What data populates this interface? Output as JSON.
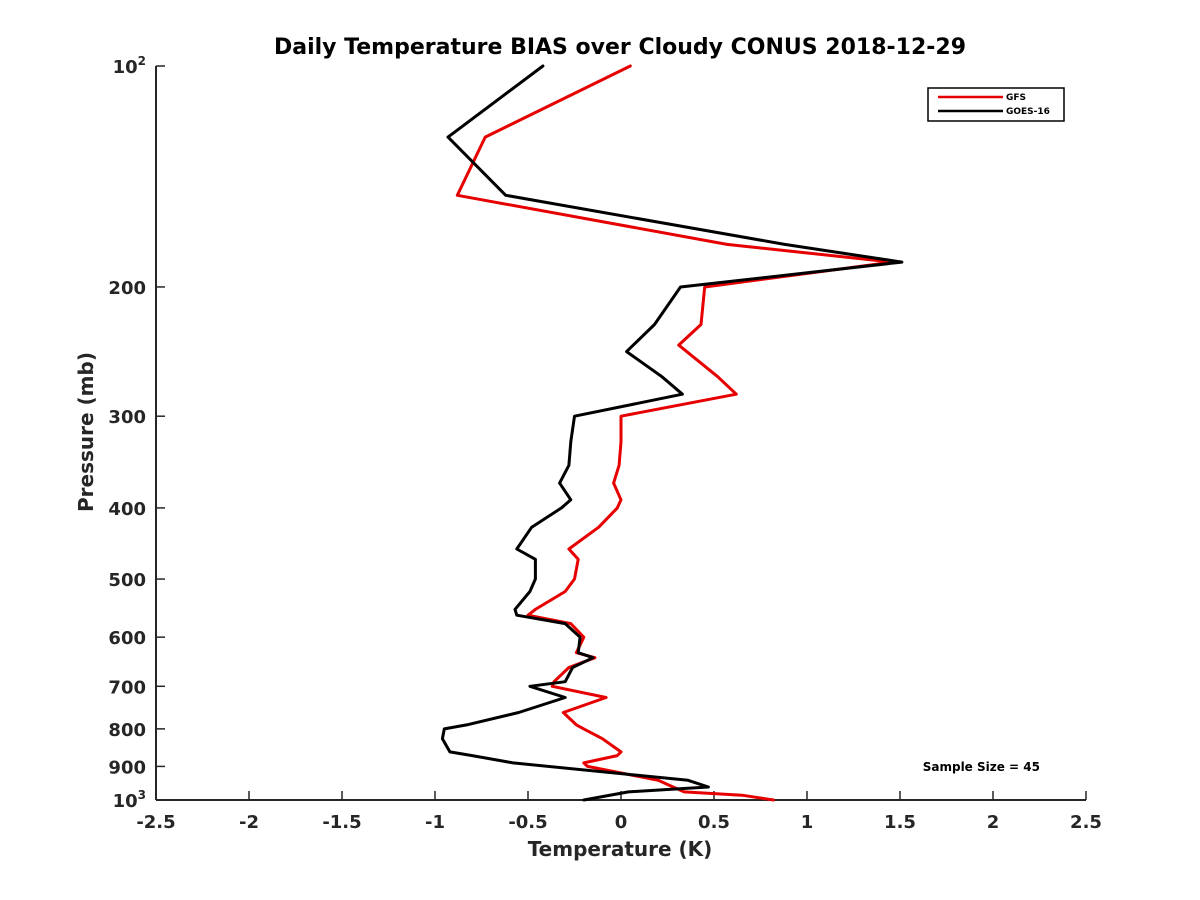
{
  "chart_data": {
    "type": "line",
    "title": "Daily Temperature BIAS over Cloudy CONUS 2018-12-29",
    "xlabel": "Temperature (K)",
    "ylabel": "Pressure (mb)",
    "xlim": [
      -2.5,
      2.5
    ],
    "ylim": [
      100,
      1000
    ],
    "y_scale": "log",
    "y_reversed": true,
    "x_ticks": [
      -2.5,
      -2,
      -1.5,
      -1,
      -0.5,
      0,
      0.5,
      1,
      1.5,
      2,
      2.5
    ],
    "x_tick_labels": [
      "-2.5",
      "-2",
      "-1.5",
      "-1",
      "-0.5",
      "0",
      "0.5",
      "1",
      "1.5",
      "2",
      "2.5"
    ],
    "y_ticks": [
      {
        "value": 100,
        "base": "10",
        "exp": "2"
      },
      {
        "value": 200,
        "label": "200"
      },
      {
        "value": 300,
        "label": "300"
      },
      {
        "value": 400,
        "label": "400"
      },
      {
        "value": 500,
        "label": "500"
      },
      {
        "value": 600,
        "label": "600"
      },
      {
        "value": 700,
        "label": "700"
      },
      {
        "value": 800,
        "label": "800"
      },
      {
        "value": 900,
        "label": "900"
      },
      {
        "value": 1000,
        "base": "10",
        "exp": "3"
      }
    ],
    "grid": false,
    "legend_position": "top-right",
    "annotation": "Sample Size = 45",
    "series": [
      {
        "name": "GFS",
        "color": "#e60000",
        "points": [
          [
            0.05,
            100
          ],
          [
            -0.73,
            125
          ],
          [
            -0.88,
            150
          ],
          [
            0.57,
            175
          ],
          [
            1.46,
            185
          ],
          [
            0.45,
            200
          ],
          [
            0.43,
            225
          ],
          [
            0.31,
            240
          ],
          [
            0.52,
            265
          ],
          [
            0.62,
            280
          ],
          [
            0.0,
            300
          ],
          [
            0.0,
            325
          ],
          [
            -0.01,
            350
          ],
          [
            -0.04,
            370
          ],
          [
            0.0,
            390
          ],
          [
            -0.02,
            400
          ],
          [
            -0.12,
            425
          ],
          [
            -0.28,
            455
          ],
          [
            -0.23,
            470
          ],
          [
            -0.25,
            500
          ],
          [
            -0.3,
            520
          ],
          [
            -0.46,
            550
          ],
          [
            -0.5,
            560
          ],
          [
            -0.27,
            575
          ],
          [
            -0.2,
            600
          ],
          [
            -0.24,
            630
          ],
          [
            -0.14,
            640
          ],
          [
            -0.28,
            660
          ],
          [
            -0.36,
            690
          ],
          [
            -0.37,
            700
          ],
          [
            -0.08,
            725
          ],
          [
            -0.31,
            760
          ],
          [
            -0.24,
            790
          ],
          [
            -0.2,
            800
          ],
          [
            -0.1,
            825
          ],
          [
            0.0,
            860
          ],
          [
            -0.02,
            870
          ],
          [
            -0.2,
            890
          ],
          [
            -0.18,
            900
          ],
          [
            0.2,
            940
          ],
          [
            0.28,
            960
          ],
          [
            0.34,
            975
          ],
          [
            0.65,
            985
          ],
          [
            0.82,
            1000
          ]
        ]
      },
      {
        "name": "GOES-16",
        "color": "#000000",
        "points": [
          [
            -0.42,
            100
          ],
          [
            -0.93,
            125
          ],
          [
            -0.62,
            150
          ],
          [
            0.88,
            175
          ],
          [
            1.51,
            185
          ],
          [
            0.32,
            200
          ],
          [
            0.18,
            225
          ],
          [
            0.03,
            245
          ],
          [
            0.22,
            265
          ],
          [
            0.33,
            280
          ],
          [
            -0.25,
            300
          ],
          [
            -0.27,
            325
          ],
          [
            -0.28,
            350
          ],
          [
            -0.33,
            370
          ],
          [
            -0.27,
            390
          ],
          [
            -0.32,
            400
          ],
          [
            -0.48,
            425
          ],
          [
            -0.56,
            455
          ],
          [
            -0.46,
            470
          ],
          [
            -0.46,
            500
          ],
          [
            -0.49,
            520
          ],
          [
            -0.57,
            550
          ],
          [
            -0.56,
            560
          ],
          [
            -0.3,
            575
          ],
          [
            -0.22,
            600
          ],
          [
            -0.23,
            630
          ],
          [
            -0.15,
            640
          ],
          [
            -0.26,
            660
          ],
          [
            -0.3,
            690
          ],
          [
            -0.49,
            700
          ],
          [
            -0.3,
            725
          ],
          [
            -0.55,
            760
          ],
          [
            -0.83,
            790
          ],
          [
            -0.95,
            800
          ],
          [
            -0.96,
            825
          ],
          [
            -0.92,
            860
          ],
          [
            -0.8,
            870
          ],
          [
            -0.58,
            890
          ],
          [
            0.36,
            940
          ],
          [
            0.47,
            960
          ],
          [
            0.04,
            975
          ],
          [
            -0.2,
            1000
          ]
        ]
      }
    ]
  }
}
